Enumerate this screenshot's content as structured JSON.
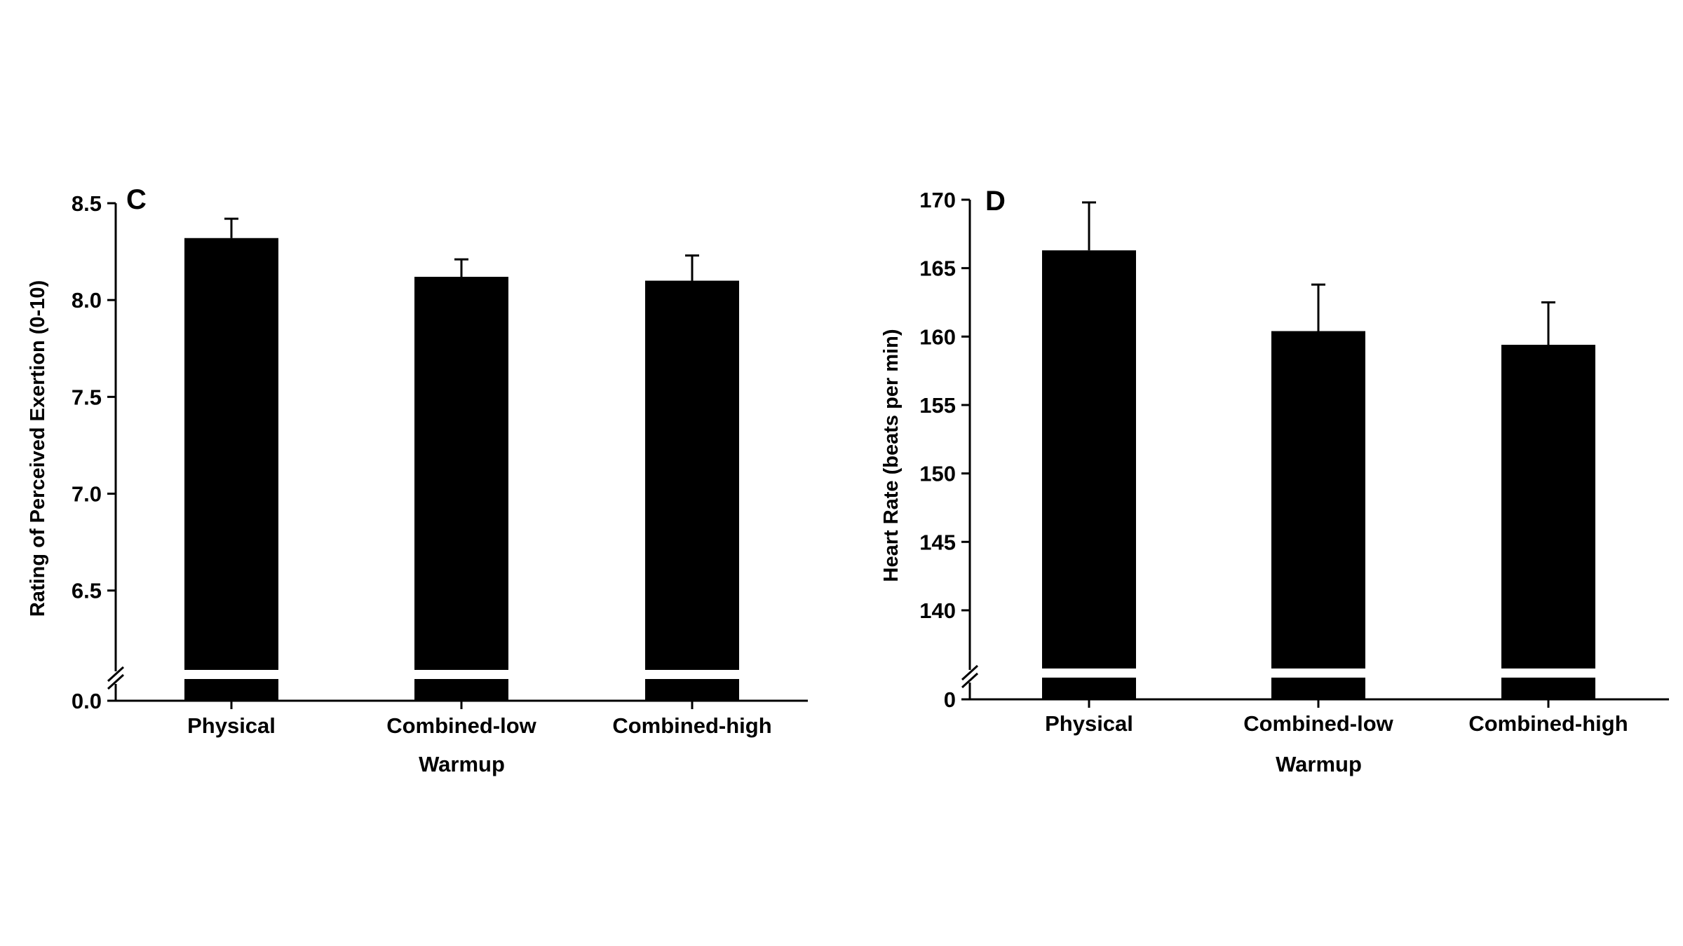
{
  "chart_data": [
    {
      "type": "bar",
      "panel_label": "C",
      "title": "",
      "xlabel": "Warmup",
      "ylabel": "Rating of Perceived Exertion (0-10)",
      "categories": [
        "Physical",
        "Combined-low",
        "Combined-high"
      ],
      "values": [
        8.32,
        8.12,
        8.1
      ],
      "error": [
        0.1,
        0.09,
        0.13
      ],
      "ylim": [
        6.3,
        8.5
      ],
      "yticks": [
        6.5,
        7.0,
        7.5,
        8.0,
        8.5
      ],
      "ytick_labels": [
        "6.5",
        "7.0",
        "7.5",
        "8.0",
        "8.5"
      ],
      "axis_break": true,
      "broken_base_label": "0.0",
      "bar_color": "#000000",
      "grid": false,
      "legend": "none"
    },
    {
      "type": "bar",
      "panel_label": "D",
      "title": "",
      "xlabel": "Warmup",
      "ylabel": "Heart Rate (beats per min)",
      "categories": [
        "Physical",
        "Combined-low",
        "Combined-high"
      ],
      "values": [
        166.3,
        160.4,
        159.4
      ],
      "error": [
        3.5,
        3.4,
        3.1
      ],
      "ylim": [
        138,
        170
      ],
      "yticks": [
        140,
        145,
        150,
        155,
        160,
        165,
        170
      ],
      "ytick_labels": [
        "140",
        "145",
        "150",
        "155",
        "160",
        "165",
        "170"
      ],
      "axis_break": true,
      "broken_base_label": "0",
      "bar_color": "#000000",
      "grid": false,
      "legend": "none"
    }
  ]
}
